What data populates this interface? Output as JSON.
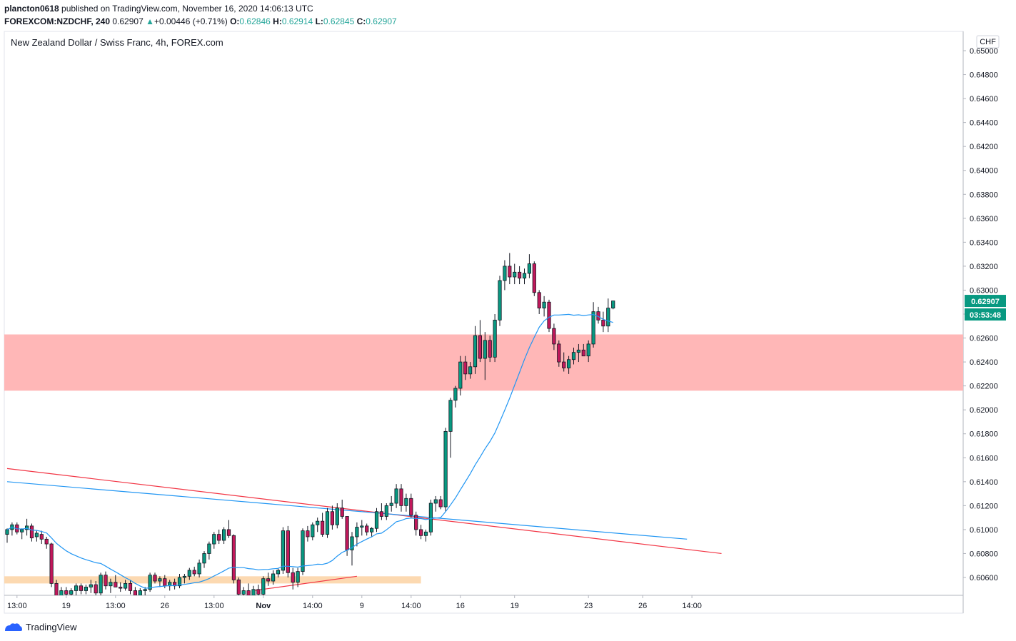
{
  "header": {
    "publisher": "plancton0618",
    "published_text": "published on TradingView.com, November 16, 2020 14:06:13 UTC",
    "symbol": "FOREXCOM:NZDCHF, 240",
    "last": "0.62907",
    "change_arrow": "▲",
    "change": "+0.00446 (+0.71%)",
    "o_label": "O:",
    "o": "0.62846",
    "h_label": "H:",
    "h": "0.62914",
    "l_label": "L:",
    "l": "0.62845",
    "c_label": "C:",
    "c": "0.62907"
  },
  "chart_data": {
    "type": "candlestick",
    "title": "New Zealand Dollar / Swiss Franc, 4h, FOREX.com",
    "currency": "CHF",
    "ylim": [
      0.6054,
      0.6511
    ],
    "y_ticks": [
      0.65,
      0.648,
      0.646,
      0.644,
      0.642,
      0.64,
      0.638,
      0.636,
      0.634,
      0.632,
      0.63,
      0.628,
      0.626,
      0.624,
      0.622,
      0.62,
      0.618,
      0.616,
      0.614,
      0.612,
      0.61,
      0.608,
      0.606
    ],
    "y_tick_labels": [
      "0.65000",
      "0.64800",
      "0.64600",
      "0.64400",
      "0.64200",
      "0.64000",
      "0.63800",
      "0.63600",
      "0.63400",
      "0.63200",
      "0.63000",
      "0.62800",
      "0.62600",
      "0.62400",
      "0.62200",
      "0.62000",
      "0.61800",
      "0.61600",
      "0.61400",
      "0.61200",
      "0.61000",
      "0.60800",
      "0.60600"
    ],
    "x_tick_labels": [
      "13:00",
      "19",
      "13:00",
      "26",
      "13:00",
      "Nov",
      "14:00",
      "9",
      "14:00",
      "16",
      "19",
      "23",
      "26",
      "14:00"
    ],
    "x_tick_bars": [
      2,
      12,
      22,
      32,
      42,
      52,
      62,
      72,
      82,
      92,
      103,
      118,
      129,
      139
    ],
    "last_price": {
      "value": 0.62907,
      "label": "0.62907",
      "countdown": "03:53:48",
      "color": "#089981"
    },
    "zones": [
      {
        "name": "resistance-zone",
        "y_low": 0.6216,
        "y_high": 0.6263,
        "color": "#ffb7b7"
      },
      {
        "name": "support-zone",
        "y_low": 0.6055,
        "y_high": 0.6061,
        "color": "#fcd9b1",
        "bar_end": 84
      }
    ],
    "trendlines": [
      {
        "name": "red-descending-trendline",
        "color": "#f23645",
        "points": [
          [
            0,
            0.6151
          ],
          [
            145,
            0.608
          ]
        ]
      },
      {
        "name": "blue-descending-trendline",
        "color": "#2196f3",
        "points": [
          [
            0,
            0.614
          ],
          [
            138,
            0.6092
          ]
        ]
      },
      {
        "name": "red-ascending-trendline",
        "color": "#f23645",
        "points": [
          [
            50,
            0.6049
          ],
          [
            71,
            0.6061
          ]
        ]
      }
    ],
    "ma_color": "#2196f3",
    "up_color": "#089981",
    "down_color": "#c2185b",
    "candles": [
      {
        "o": 0.6096,
        "h": 0.6101,
        "l": 0.6089,
        "c": 0.61
      },
      {
        "o": 0.61,
        "h": 0.6106,
        "l": 0.6095,
        "c": 0.6104
      },
      {
        "o": 0.6104,
        "h": 0.6106,
        "l": 0.6096,
        "c": 0.6098
      },
      {
        "o": 0.6098,
        "h": 0.6101,
        "l": 0.6092,
        "c": 0.61
      },
      {
        "o": 0.61,
        "h": 0.6109,
        "l": 0.6095,
        "c": 0.6103
      },
      {
        "o": 0.6103,
        "h": 0.6105,
        "l": 0.609,
        "c": 0.6093
      },
      {
        "o": 0.6094,
        "h": 0.6099,
        "l": 0.609,
        "c": 0.6097
      },
      {
        "o": 0.6096,
        "h": 0.6099,
        "l": 0.6088,
        "c": 0.6092
      },
      {
        "o": 0.6092,
        "h": 0.6094,
        "l": 0.6084,
        "c": 0.6088
      },
      {
        "o": 0.6088,
        "h": 0.6089,
        "l": 0.6052,
        "c": 0.6055
      },
      {
        "o": 0.6055,
        "h": 0.6058,
        "l": 0.604,
        "c": 0.6044
      },
      {
        "o": 0.6044,
        "h": 0.6052,
        "l": 0.6036,
        "c": 0.6049
      },
      {
        "o": 0.6049,
        "h": 0.6052,
        "l": 0.604,
        "c": 0.6046
      },
      {
        "o": 0.6046,
        "h": 0.6051,
        "l": 0.6039,
        "c": 0.6049
      },
      {
        "o": 0.6049,
        "h": 0.6055,
        "l": 0.6045,
        "c": 0.6053
      },
      {
        "o": 0.6053,
        "h": 0.6055,
        "l": 0.6046,
        "c": 0.6049
      },
      {
        "o": 0.6049,
        "h": 0.6054,
        "l": 0.6046,
        "c": 0.6052
      },
      {
        "o": 0.6052,
        "h": 0.6058,
        "l": 0.6047,
        "c": 0.6054
      },
      {
        "o": 0.6054,
        "h": 0.6057,
        "l": 0.6044,
        "c": 0.6047
      },
      {
        "o": 0.6047,
        "h": 0.6064,
        "l": 0.6045,
        "c": 0.6062
      },
      {
        "o": 0.6062,
        "h": 0.6065,
        "l": 0.605,
        "c": 0.6053
      },
      {
        "o": 0.6053,
        "h": 0.6059,
        "l": 0.6047,
        "c": 0.6056
      },
      {
        "o": 0.6056,
        "h": 0.6062,
        "l": 0.6052,
        "c": 0.6052
      },
      {
        "o": 0.6052,
        "h": 0.6056,
        "l": 0.6048,
        "c": 0.6051
      },
      {
        "o": 0.6051,
        "h": 0.6058,
        "l": 0.6049,
        "c": 0.6055
      },
      {
        "o": 0.6055,
        "h": 0.6058,
        "l": 0.6046,
        "c": 0.6049
      },
      {
        "o": 0.6049,
        "h": 0.6052,
        "l": 0.6043,
        "c": 0.6045
      },
      {
        "o": 0.6045,
        "h": 0.6051,
        "l": 0.6042,
        "c": 0.6049
      },
      {
        "o": 0.6049,
        "h": 0.6052,
        "l": 0.6045,
        "c": 0.605
      },
      {
        "o": 0.605,
        "h": 0.6064,
        "l": 0.6048,
        "c": 0.6062
      },
      {
        "o": 0.6062,
        "h": 0.6064,
        "l": 0.6055,
        "c": 0.6057
      },
      {
        "o": 0.6057,
        "h": 0.6061,
        "l": 0.6052,
        "c": 0.6059
      },
      {
        "o": 0.6059,
        "h": 0.6062,
        "l": 0.6051,
        "c": 0.6053
      },
      {
        "o": 0.6053,
        "h": 0.6058,
        "l": 0.6049,
        "c": 0.6056
      },
      {
        "o": 0.6056,
        "h": 0.6059,
        "l": 0.605,
        "c": 0.6053
      },
      {
        "o": 0.6053,
        "h": 0.6063,
        "l": 0.6051,
        "c": 0.606
      },
      {
        "o": 0.606,
        "h": 0.6063,
        "l": 0.6055,
        "c": 0.6061
      },
      {
        "o": 0.6061,
        "h": 0.6068,
        "l": 0.6058,
        "c": 0.6066
      },
      {
        "o": 0.6066,
        "h": 0.6069,
        "l": 0.6061,
        "c": 0.6063
      },
      {
        "o": 0.6063,
        "h": 0.6075,
        "l": 0.606,
        "c": 0.6072
      },
      {
        "o": 0.6072,
        "h": 0.6082,
        "l": 0.6068,
        "c": 0.608
      },
      {
        "o": 0.608,
        "h": 0.609,
        "l": 0.6075,
        "c": 0.6088
      },
      {
        "o": 0.6088,
        "h": 0.6098,
        "l": 0.6084,
        "c": 0.6096
      },
      {
        "o": 0.6096,
        "h": 0.61,
        "l": 0.6088,
        "c": 0.6091
      },
      {
        "o": 0.6091,
        "h": 0.6102,
        "l": 0.6088,
        "c": 0.61
      },
      {
        "o": 0.61,
        "h": 0.6108,
        "l": 0.6093,
        "c": 0.6095
      },
      {
        "o": 0.6095,
        "h": 0.6096,
        "l": 0.6055,
        "c": 0.6058
      },
      {
        "o": 0.6058,
        "h": 0.606,
        "l": 0.604,
        "c": 0.6046
      },
      {
        "o": 0.6046,
        "h": 0.6052,
        "l": 0.604,
        "c": 0.6049
      },
      {
        "o": 0.6049,
        "h": 0.6055,
        "l": 0.6042,
        "c": 0.6045
      },
      {
        "o": 0.6045,
        "h": 0.6053,
        "l": 0.6042,
        "c": 0.605
      },
      {
        "o": 0.605,
        "h": 0.6054,
        "l": 0.6043,
        "c": 0.6046
      },
      {
        "o": 0.6046,
        "h": 0.6061,
        "l": 0.6044,
        "c": 0.6059
      },
      {
        "o": 0.6059,
        "h": 0.6064,
        "l": 0.6053,
        "c": 0.6057
      },
      {
        "o": 0.6057,
        "h": 0.6066,
        "l": 0.6054,
        "c": 0.6063
      },
      {
        "o": 0.6063,
        "h": 0.6068,
        "l": 0.606,
        "c": 0.6066
      },
      {
        "o": 0.6066,
        "h": 0.6102,
        "l": 0.6063,
        "c": 0.6099
      },
      {
        "o": 0.6099,
        "h": 0.6103,
        "l": 0.606,
        "c": 0.6064
      },
      {
        "o": 0.6064,
        "h": 0.6068,
        "l": 0.605,
        "c": 0.6056
      },
      {
        "o": 0.6056,
        "h": 0.6068,
        "l": 0.6052,
        "c": 0.6065
      },
      {
        "o": 0.6065,
        "h": 0.6101,
        "l": 0.6062,
        "c": 0.6099
      },
      {
        "o": 0.6099,
        "h": 0.6103,
        "l": 0.609,
        "c": 0.6094
      },
      {
        "o": 0.6094,
        "h": 0.6106,
        "l": 0.6091,
        "c": 0.6104
      },
      {
        "o": 0.6104,
        "h": 0.611,
        "l": 0.6098,
        "c": 0.6107
      },
      {
        "o": 0.6107,
        "h": 0.6114,
        "l": 0.6094,
        "c": 0.6096
      },
      {
        "o": 0.6096,
        "h": 0.6118,
        "l": 0.6093,
        "c": 0.6115
      },
      {
        "o": 0.6115,
        "h": 0.612,
        "l": 0.61,
        "c": 0.6104
      },
      {
        "o": 0.6104,
        "h": 0.6122,
        "l": 0.6101,
        "c": 0.6118
      },
      {
        "o": 0.6118,
        "h": 0.6125,
        "l": 0.6109,
        "c": 0.6111
      },
      {
        "o": 0.6111,
        "h": 0.6108,
        "l": 0.6078,
        "c": 0.6083
      },
      {
        "o": 0.6083,
        "h": 0.6098,
        "l": 0.607,
        "c": 0.6094
      },
      {
        "o": 0.6094,
        "h": 0.6106,
        "l": 0.6086,
        "c": 0.6102
      },
      {
        "o": 0.6102,
        "h": 0.6108,
        "l": 0.6095,
        "c": 0.6103
      },
      {
        "o": 0.6103,
        "h": 0.6105,
        "l": 0.6095,
        "c": 0.6098
      },
      {
        "o": 0.6098,
        "h": 0.6102,
        "l": 0.6094,
        "c": 0.6101
      },
      {
        "o": 0.6101,
        "h": 0.6118,
        "l": 0.6098,
        "c": 0.6115
      },
      {
        "o": 0.6115,
        "h": 0.6122,
        "l": 0.6108,
        "c": 0.6111
      },
      {
        "o": 0.6111,
        "h": 0.6122,
        "l": 0.6108,
        "c": 0.612
      },
      {
        "o": 0.612,
        "h": 0.6128,
        "l": 0.6115,
        "c": 0.6122
      },
      {
        "o": 0.6122,
        "h": 0.6138,
        "l": 0.6118,
        "c": 0.6134
      },
      {
        "o": 0.6134,
        "h": 0.6138,
        "l": 0.6115,
        "c": 0.612
      },
      {
        "o": 0.612,
        "h": 0.613,
        "l": 0.6115,
        "c": 0.6126
      },
      {
        "o": 0.6126,
        "h": 0.613,
        "l": 0.611,
        "c": 0.6112
      },
      {
        "o": 0.6112,
        "h": 0.6115,
        "l": 0.6095,
        "c": 0.61
      },
      {
        "o": 0.61,
        "h": 0.6104,
        "l": 0.6092,
        "c": 0.6095
      },
      {
        "o": 0.6095,
        "h": 0.61,
        "l": 0.609,
        "c": 0.6098
      },
      {
        "o": 0.6098,
        "h": 0.6125,
        "l": 0.6095,
        "c": 0.6122
      },
      {
        "o": 0.6122,
        "h": 0.6128,
        "l": 0.6115,
        "c": 0.6125
      },
      {
        "o": 0.6125,
        "h": 0.6128,
        "l": 0.6117,
        "c": 0.6119
      },
      {
        "o": 0.6119,
        "h": 0.6185,
        "l": 0.6115,
        "c": 0.6182
      },
      {
        "o": 0.6182,
        "h": 0.621,
        "l": 0.616,
        "c": 0.6208
      },
      {
        "o": 0.6208,
        "h": 0.622,
        "l": 0.6202,
        "c": 0.6218
      },
      {
        "o": 0.6218,
        "h": 0.6245,
        "l": 0.6212,
        "c": 0.624
      },
      {
        "o": 0.624,
        "h": 0.6245,
        "l": 0.6225,
        "c": 0.623
      },
      {
        "o": 0.623,
        "h": 0.624,
        "l": 0.6226,
        "c": 0.6236
      },
      {
        "o": 0.6236,
        "h": 0.627,
        "l": 0.623,
        "c": 0.6262
      },
      {
        "o": 0.6262,
        "h": 0.6275,
        "l": 0.624,
        "c": 0.6243
      },
      {
        "o": 0.6243,
        "h": 0.6265,
        "l": 0.6225,
        "c": 0.6258
      },
      {
        "o": 0.6258,
        "h": 0.6262,
        "l": 0.624,
        "c": 0.6244
      },
      {
        "o": 0.6244,
        "h": 0.628,
        "l": 0.624,
        "c": 0.6275
      },
      {
        "o": 0.6275,
        "h": 0.6312,
        "l": 0.627,
        "c": 0.6308
      },
      {
        "o": 0.6308,
        "h": 0.6325,
        "l": 0.63,
        "c": 0.632
      },
      {
        "o": 0.632,
        "h": 0.6331,
        "l": 0.6305,
        "c": 0.6311
      },
      {
        "o": 0.6311,
        "h": 0.6322,
        "l": 0.6305,
        "c": 0.6315
      },
      {
        "o": 0.6315,
        "h": 0.632,
        "l": 0.6305,
        "c": 0.631
      },
      {
        "o": 0.631,
        "h": 0.6318,
        "l": 0.6305,
        "c": 0.6314
      },
      {
        "o": 0.6314,
        "h": 0.633,
        "l": 0.631,
        "c": 0.6322
      },
      {
        "o": 0.6322,
        "h": 0.6324,
        "l": 0.6295,
        "c": 0.6298
      },
      {
        "o": 0.6298,
        "h": 0.63,
        "l": 0.628,
        "c": 0.6285
      },
      {
        "o": 0.6285,
        "h": 0.6295,
        "l": 0.6278,
        "c": 0.629
      },
      {
        "o": 0.629,
        "h": 0.6292,
        "l": 0.6265,
        "c": 0.6268
      },
      {
        "o": 0.6268,
        "h": 0.6272,
        "l": 0.625,
        "c": 0.6255
      },
      {
        "o": 0.6255,
        "h": 0.6258,
        "l": 0.6236,
        "c": 0.624
      },
      {
        "o": 0.624,
        "h": 0.6248,
        "l": 0.6232,
        "c": 0.6235
      },
      {
        "o": 0.6235,
        "h": 0.6245,
        "l": 0.623,
        "c": 0.6242
      },
      {
        "o": 0.6242,
        "h": 0.6252,
        "l": 0.6238,
        "c": 0.6248
      },
      {
        "o": 0.6248,
        "h": 0.6255,
        "l": 0.624,
        "c": 0.625
      },
      {
        "o": 0.625,
        "h": 0.6255,
        "l": 0.6245,
        "c": 0.6245
      },
      {
        "o": 0.6245,
        "h": 0.6258,
        "l": 0.624,
        "c": 0.6255
      },
      {
        "o": 0.6255,
        "h": 0.629,
        "l": 0.6252,
        "c": 0.6282
      },
      {
        "o": 0.6282,
        "h": 0.6286,
        "l": 0.6272,
        "c": 0.6275
      },
      {
        "o": 0.6275,
        "h": 0.6282,
        "l": 0.6265,
        "c": 0.627
      },
      {
        "o": 0.627,
        "h": 0.6293,
        "l": 0.6265,
        "c": 0.6285
      },
      {
        "o": 0.6285,
        "h": 0.6291,
        "l": 0.6284,
        "c": 0.6291
      }
    ]
  },
  "footer": {
    "brand": "TradingView"
  }
}
